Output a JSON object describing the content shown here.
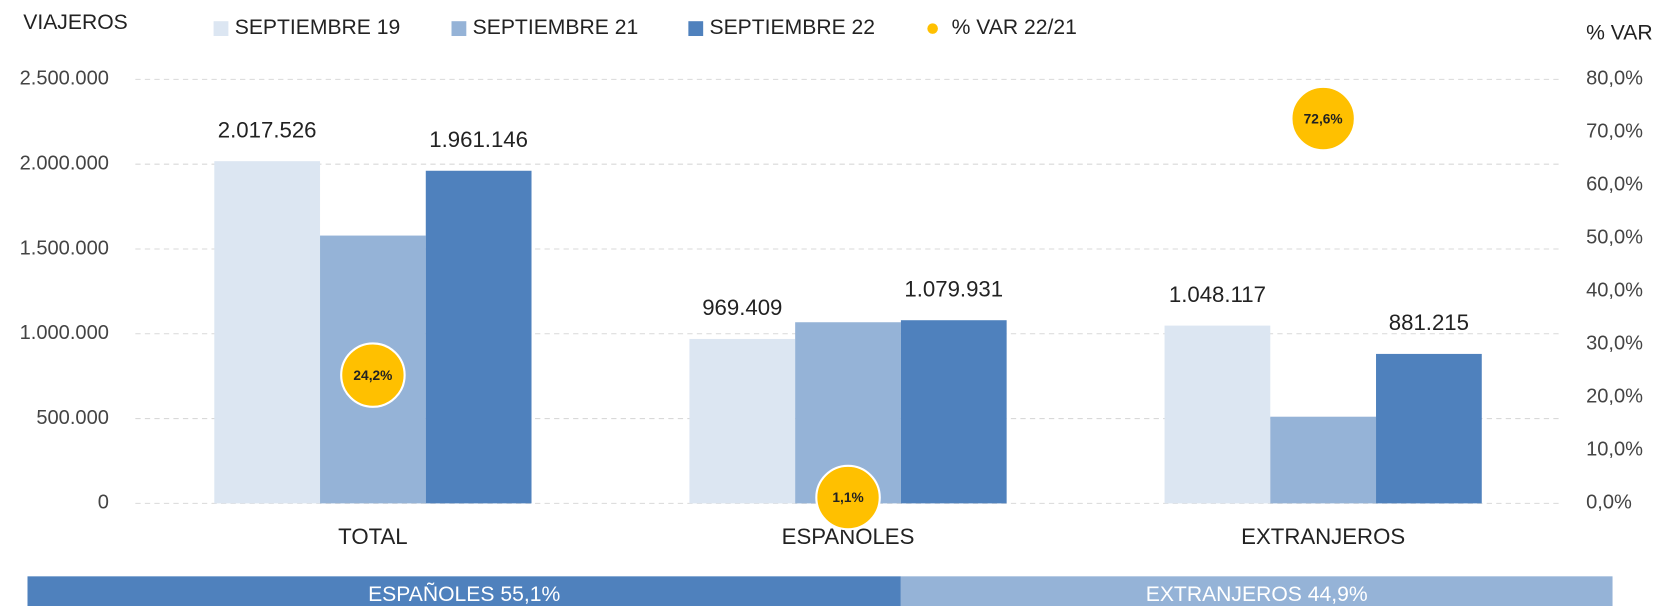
{
  "chart_data": {
    "type": "bar",
    "ylabel": "VIAJEROS",
    "y2label": "% VAR",
    "categories": [
      "TOTAL",
      "ESPAÑOLES",
      "EXTRANJEROS"
    ],
    "series": [
      {
        "name": "SEPTIEMBRE 19",
        "color": "#dce6f2",
        "values": [
          2017526,
          969409,
          1048117
        ],
        "value_labels": [
          "2.017.526",
          "969.409",
          "1.048.117"
        ]
      },
      {
        "name": "SEPTIEMBRE 21",
        "color": "#95b3d7",
        "values": [
          1579000,
          1068000,
          511000
        ]
      },
      {
        "name": "SEPTIEMBRE 22",
        "color": "#4f81bd",
        "values": [
          1961146,
          1079931,
          881215
        ],
        "value_labels": [
          "1.961.146",
          "1.079.931",
          "881.215"
        ]
      },
      {
        "name": "% VAR 22/21",
        "type": "scatter",
        "axis": "y2",
        "color": "#ffc000",
        "values": [
          24.2,
          1.1,
          72.6
        ],
        "value_labels": [
          "24,2%",
          "1,1%",
          "72,6%"
        ]
      }
    ],
    "ylim": [
      0,
      2500000
    ],
    "yticks": [
      0,
      {
        "value": 500000,
        "label": "500.000"
      },
      {
        "value": 1000000,
        "label": "1.000.000"
      },
      {
        "value": 1500000,
        "label": "1.500.000"
      },
      {
        "value": 2000000,
        "label": "2.000.000"
      },
      {
        "value": 2500000,
        "label": "2.500.000"
      }
    ],
    "y2lim": [
      0,
      80
    ],
    "y2ticks": [
      {
        "value": 0,
        "label": "0,0%"
      },
      {
        "value": 10,
        "label": "10,0%"
      },
      {
        "value": 20,
        "label": "20,0%"
      },
      {
        "value": 30,
        "label": "30,0%"
      },
      {
        "value": 40,
        "label": "40,0%"
      },
      {
        "value": 50,
        "label": "50,0%"
      },
      {
        "value": 60,
        "label": "60,0%"
      },
      {
        "value": 70,
        "label": "70,0%"
      },
      {
        "value": 80,
        "label": "80,0%"
      }
    ],
    "grid": true,
    "legend": "top"
  },
  "share_bar": {
    "segments": [
      {
        "label": "ESPAÑOLES 55,1%",
        "value": 55.1,
        "color": "#4f81bd"
      },
      {
        "label": "EXTRANJEROS 44,9%",
        "value": 44.9,
        "color": "#95b3d7"
      }
    ]
  }
}
